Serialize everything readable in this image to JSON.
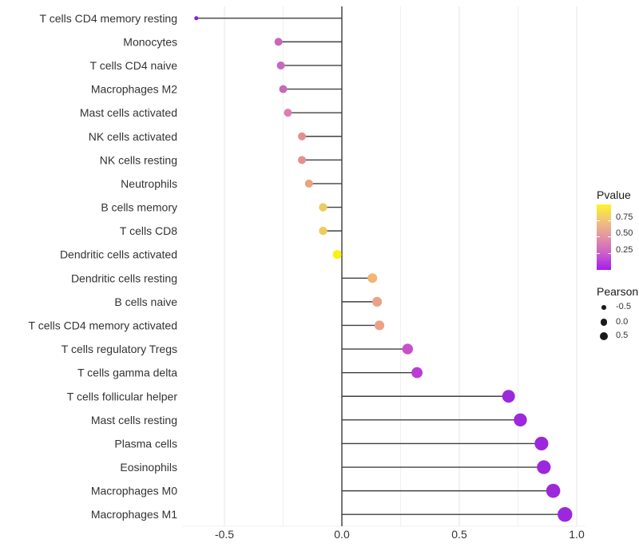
{
  "figure": {
    "background": "#ffffff",
    "axis_text_color": "#333333",
    "segment_color": "#404040",
    "zero_line_color": "#1a1a1a",
    "grid_major_color": "#e6e6e6",
    "grid_minor_color": "#f0f0f0"
  },
  "chart_data": {
    "type": "scatter",
    "variant": "lollipop",
    "orientation": "horizontal",
    "title": "",
    "xlabel": "",
    "ylabel": "",
    "xlim": [
      -0.68,
      1.05
    ],
    "grid": "vertical-only",
    "legend_position": "right",
    "x_ticks": [
      {
        "value": -0.5,
        "label": "-0.5"
      },
      {
        "value": 0.0,
        "label": "0.0"
      },
      {
        "value": 0.5,
        "label": "0.5"
      },
      {
        "value": 1.0,
        "label": "1.0"
      }
    ],
    "grid_major": [
      -0.5,
      0.5,
      1.0
    ],
    "grid_minor": [
      -0.25,
      0.25,
      0.75
    ],
    "zero_line": 0.0,
    "categories": [
      "T cells CD4 memory resting",
      "Monocytes",
      "T cells CD4 naive",
      "Macrophages M2",
      "Mast cells activated",
      "NK cells activated",
      "NK cells resting",
      "Neutrophils",
      "B cells memory",
      "T cells CD8",
      "Dendritic cells activated",
      "Dendritic cells resting",
      "B cells naive",
      "T cells CD4 memory activated",
      "T cells regulatory  Tregs",
      "T cells gamma delta",
      "T cells follicular helper",
      "Mast cells resting",
      "Plasma cells",
      "Eosinophils",
      "Macrophages M0",
      "Macrophages M1"
    ],
    "series": [
      {
        "name": "Pearson",
        "values": [
          -0.62,
          -0.27,
          -0.26,
          -0.25,
          -0.23,
          -0.17,
          -0.17,
          -0.14,
          -0.08,
          -0.08,
          -0.02,
          0.13,
          0.15,
          0.16,
          0.28,
          0.32,
          0.71,
          0.76,
          0.85,
          0.86,
          0.9,
          0.95
        ]
      }
    ],
    "points": [
      {
        "label": "T cells CD4 memory resting",
        "pearson": -0.62,
        "color": "#8A1BE8",
        "radius": 2.5
      },
      {
        "label": "Monocytes",
        "pearson": -0.27,
        "color": "#C966BE",
        "radius": 5.0
      },
      {
        "label": "T cells CD4 naive",
        "pearson": -0.26,
        "color": "#C966BE",
        "radius": 5.0
      },
      {
        "label": "Macrophages M2",
        "pearson": -0.25,
        "color": "#C76ABA",
        "radius": 5.0
      },
      {
        "label": "Mast cells activated",
        "pearson": -0.23,
        "color": "#DA7FAF",
        "radius": 5.0
      },
      {
        "label": "NK cells activated",
        "pearson": -0.17,
        "color": "#E49090",
        "radius": 5.0
      },
      {
        "label": "NK cells resting",
        "pearson": -0.17,
        "color": "#E49090",
        "radius": 5.0
      },
      {
        "label": "Neutrophils",
        "pearson": -0.14,
        "color": "#EBA378",
        "radius": 5.0
      },
      {
        "label": "B cells memory",
        "pearson": -0.08,
        "color": "#EECB5E",
        "radius": 5.2
      },
      {
        "label": "T cells CD8",
        "pearson": -0.08,
        "color": "#EECB5E",
        "radius": 5.2
      },
      {
        "label": "Dendritic cells activated",
        "pearson": -0.02,
        "color": "#FAF112",
        "radius": 5.6
      },
      {
        "label": "Dendritic cells resting",
        "pearson": 0.13,
        "color": "#F3B475",
        "radius": 6.0
      },
      {
        "label": "B cells naive",
        "pearson": 0.15,
        "color": "#ECA186",
        "radius": 6.1
      },
      {
        "label": "T cells CD4 memory activated",
        "pearson": 0.16,
        "color": "#ECA186",
        "radius": 6.1
      },
      {
        "label": "T cells regulatory  Tregs",
        "pearson": 0.28,
        "color": "#C94FCB",
        "radius": 6.7
      },
      {
        "label": "T cells gamma delta",
        "pearson": 0.32,
        "color": "#BB3BD6",
        "radius": 6.9
      },
      {
        "label": "T cells follicular helper",
        "pearson": 0.71,
        "color": "#9C29DC",
        "radius": 8.0
      },
      {
        "label": "Mast cells resting",
        "pearson": 0.76,
        "color": "#9C29DC",
        "radius": 8.2
      },
      {
        "label": "Plasma cells",
        "pearson": 0.85,
        "color": "#9C28DC",
        "radius": 8.6
      },
      {
        "label": "Eosinophils",
        "pearson": 0.86,
        "color": "#9C28DC",
        "radius": 8.6
      },
      {
        "label": "Macrophages M0",
        "pearson": 0.9,
        "color": "#9C28DC",
        "radius": 8.8
      },
      {
        "label": "Macrophages M1",
        "pearson": 0.95,
        "color": "#9C28DC",
        "radius": 9.2
      }
    ]
  },
  "legend": {
    "pvalue": {
      "title": "Pvalue",
      "tick_labels": [
        "0.75",
        "0.50",
        "0.25"
      ],
      "gradient_stops_top_to_bottom": [
        "#FDF42B",
        "#F1C27C",
        "#E392A4",
        "#CB5ECA",
        "#A21DF0"
      ]
    },
    "pearson": {
      "title": "Pearson",
      "dot_color": "#1a1a1a",
      "items": [
        {
          "label": "-0.5",
          "radius": 2.8
        },
        {
          "label": "0.0",
          "radius": 4.4
        },
        {
          "label": "0.5",
          "radius": 5.4
        }
      ]
    }
  }
}
